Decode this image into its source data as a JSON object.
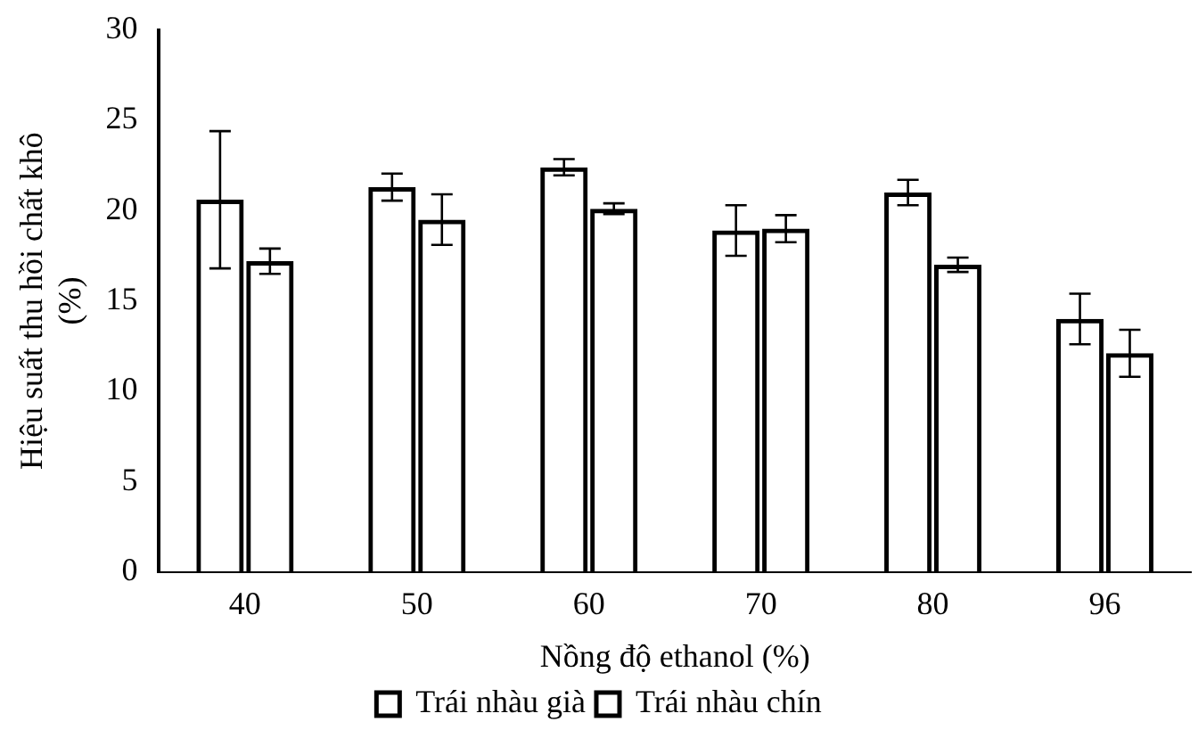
{
  "chart_data": {
    "type": "bar",
    "xlabel": "Nồng độ ethanol (%)",
    "ylabel": "Hiệu suất thu hồi chất khô (%)",
    "categories": [
      "40",
      "50",
      "60",
      "70",
      "80",
      "96"
    ],
    "series": [
      {
        "name": "Trái nhàu già",
        "color": "#000000",
        "values": [
          20.6,
          21.3,
          22.4,
          18.9,
          21.0,
          14.0
        ],
        "errors": [
          3.8,
          0.75,
          0.45,
          1.4,
          0.7,
          1.4
        ]
      },
      {
        "name": "Trái nhàu chín",
        "color": "#000000",
        "values": [
          17.2,
          19.5,
          20.1,
          19.0,
          17.0,
          12.1
        ],
        "errors": [
          0.7,
          1.4,
          0.3,
          0.75,
          0.4,
          1.3
        ]
      }
    ],
    "ylim": [
      0,
      30
    ],
    "yticks": [
      0,
      5,
      10,
      15,
      20,
      25,
      30
    ],
    "grid": false,
    "legend": "bottom"
  }
}
